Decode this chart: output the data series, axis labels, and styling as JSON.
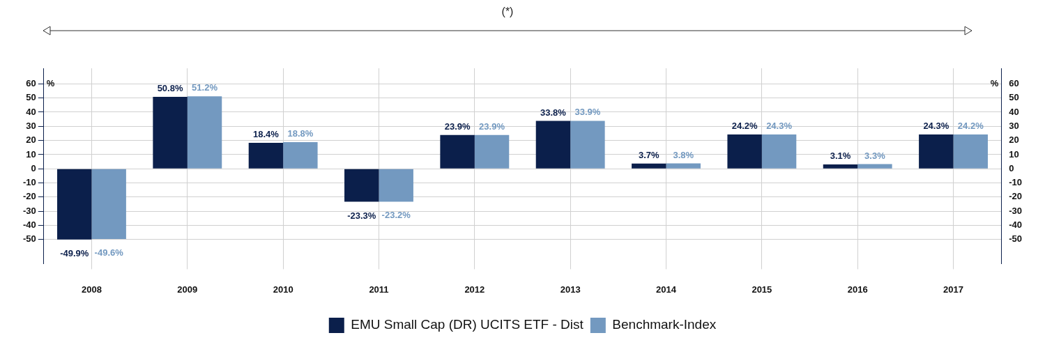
{
  "chart_data": {
    "type": "bar",
    "annotations": [
      "(*)"
    ],
    "ylabel": "%",
    "y2label": "%",
    "categories": [
      "2008",
      "2009",
      "2010",
      "2011",
      "2012",
      "2013",
      "2014",
      "2015",
      "2016",
      "2017"
    ],
    "series": [
      {
        "name": "EMU Small Cap (DR) UCITS ETF - Dist",
        "color": "#0b1f4b",
        "values": [
          -49.9,
          50.8,
          18.4,
          -23.3,
          23.9,
          33.8,
          3.7,
          24.2,
          3.1,
          24.3
        ],
        "value_labels": [
          "-49.9%",
          "50.8%",
          "18.4%",
          "-23.3%",
          "23.9%",
          "33.8%",
          "3.7%",
          "24.2%",
          "3.1%",
          "24.3%"
        ]
      },
      {
        "name": "Benchmark-Index",
        "color": "#7399c0",
        "values": [
          -49.6,
          51.2,
          18.8,
          -23.2,
          23.9,
          33.9,
          3.8,
          24.3,
          3.3,
          24.2
        ],
        "value_labels": [
          "-49.6%",
          "51.2%",
          "18.8%",
          "-23.2%",
          "23.9%",
          "33.9%",
          "3.8%",
          "24.3%",
          "3.3%",
          "24.2%"
        ]
      }
    ],
    "ylim": [
      -67,
      71
    ],
    "yticks": [
      -50,
      -40,
      -30,
      -20,
      -10,
      0,
      10,
      20,
      30,
      40,
      50,
      60
    ],
    "y2lim": [
      -67,
      71
    ],
    "y2ticks": [
      -50,
      -40,
      -30,
      -20,
      -10,
      0,
      10,
      20,
      30,
      40,
      50,
      60
    ],
    "grid": true,
    "legend": "bottom"
  }
}
